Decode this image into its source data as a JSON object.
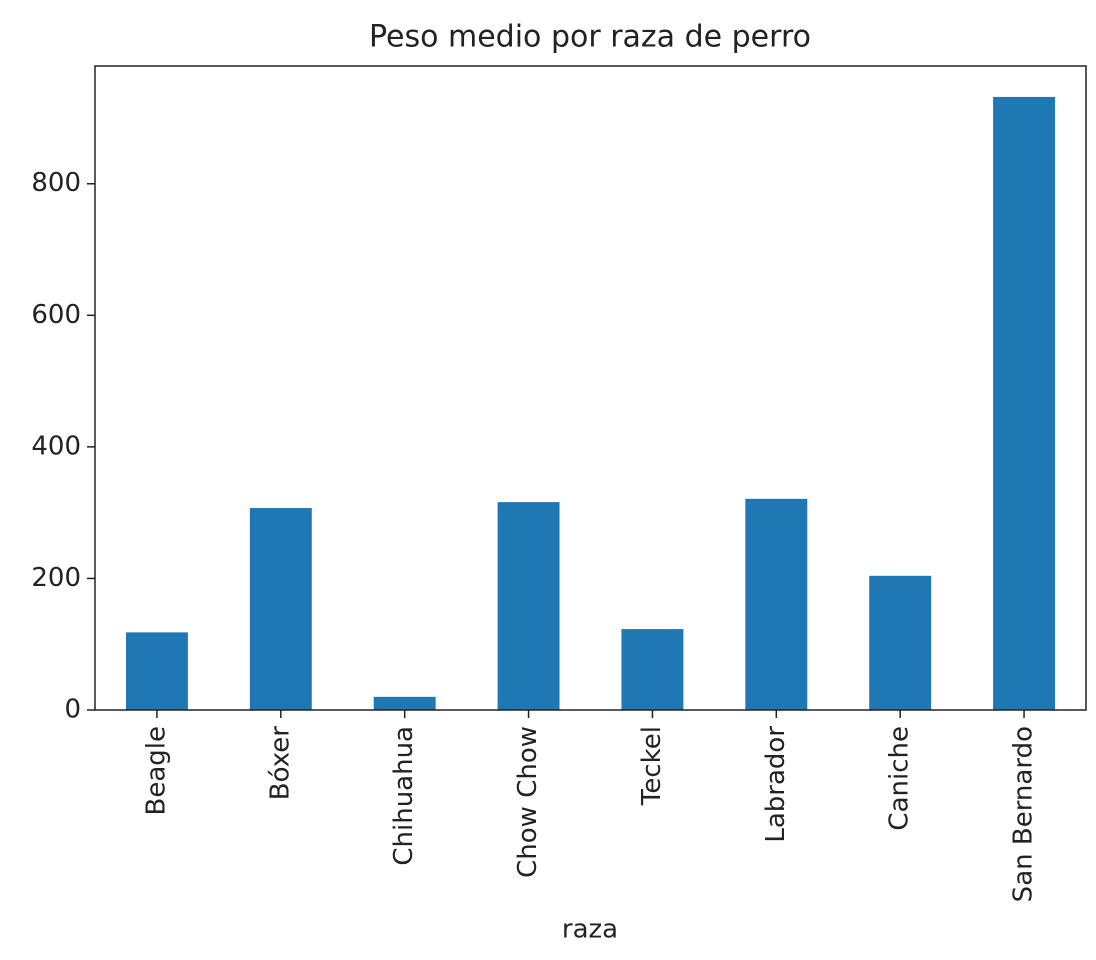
{
  "chart_data": {
    "type": "bar",
    "title": "Peso medio por raza de perro",
    "x_label": "raza",
    "categories": [
      "Beagle",
      "Bóxer",
      "Chihuahua",
      "Chow Chow",
      "Teckel",
      "Labrador",
      "Caniche",
      "San Bernardo"
    ],
    "values": [
      118,
      307,
      20,
      316,
      123,
      321,
      204,
      932
    ],
    "color": "#1f77b4",
    "ylim": [
      0,
      979
    ],
    "yticks": [
      0,
      200,
      400,
      600,
      800
    ]
  }
}
